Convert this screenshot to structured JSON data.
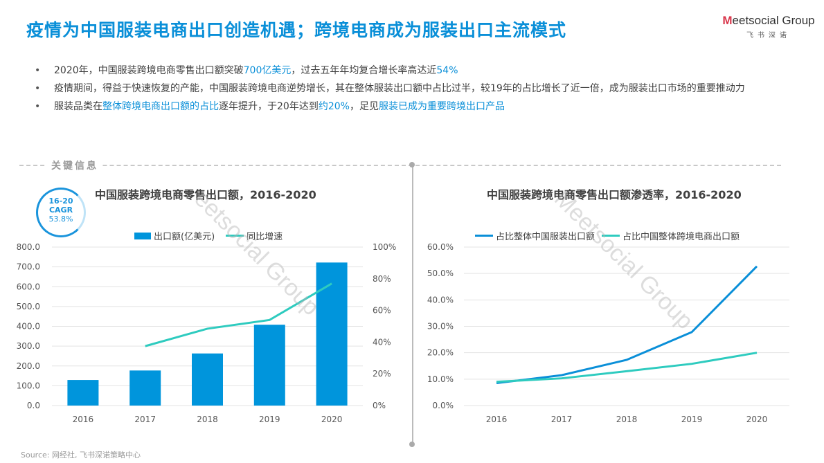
{
  "header": {
    "title": "疫情为中国服装电商出口创造机遇；跨境电商成为服装出口主流模式",
    "logo_brand": "Meetsocial Group",
    "logo_sub": "飞书深诺"
  },
  "bullets": [
    [
      {
        "t": "2020年，中国服装跨境电商零售出口额突破"
      },
      {
        "t": "700亿美元",
        "hl": true
      },
      {
        "t": "，过去五年年均复合增长率高达近"
      },
      {
        "t": "54%",
        "hl": true
      }
    ],
    [
      {
        "t": "疫情期间，得益于快速恢复的产能，中国服装跨境电商逆势增长，其在整体服装出口额中占比过半，较19年的占比增长了近一倍，成为服装出口市场的重要推动力"
      }
    ],
    [
      {
        "t": "服装品类在"
      },
      {
        "t": "整体跨境电商出口额的占比",
        "hl": true
      },
      {
        "t": "逐年提升，于20年达到"
      },
      {
        "t": "约20%",
        "hl": true
      },
      {
        "t": "，足见"
      },
      {
        "t": "服装已成为重要跨境出口产品",
        "hl": true
      }
    ]
  ],
  "key_info_label": "关键信息",
  "cagr": {
    "period": "16-20",
    "label": "CAGR",
    "value": "53.8%"
  },
  "source": "Source: 网经社, 飞书深诺策略中心",
  "colors": {
    "accent": "#0a8fd8",
    "bar": "#0095dc",
    "teal": "#2ecbbf",
    "blue_line": "#0a8fd8"
  },
  "chart_data": [
    {
      "type": "bar",
      "title": "中国服装跨境电商零售出口额，2016-2020",
      "categories": [
        "2016",
        "2017",
        "2018",
        "2019",
        "2020"
      ],
      "series": [
        {
          "name": "出口额(亿美元)",
          "type": "bar",
          "axis": "left",
          "values": [
            129,
            177,
            263,
            408,
            722
          ]
        },
        {
          "name": "同比增速",
          "type": "line",
          "axis": "right",
          "values": [
            null,
            37.5,
            48.5,
            54,
            77
          ]
        }
      ],
      "ylim": [
        0,
        800
      ],
      "yticks": [
        "0.0",
        "100.0",
        "200.0",
        "300.0",
        "400.0",
        "500.0",
        "600.0",
        "700.0",
        "800.0"
      ],
      "y2lim": [
        0,
        100
      ],
      "y2ticks": [
        "0%",
        "20%",
        "40%",
        "60%",
        "80%",
        "100%"
      ],
      "grid": true,
      "legend": "top"
    },
    {
      "type": "line",
      "title": "中国服装跨境电商零售出口额渗透率，2016-2020",
      "categories": [
        "2016",
        "2017",
        "2018",
        "2019",
        "2020"
      ],
      "series": [
        {
          "name": "占比整体中国服装出口额",
          "values": [
            8.5,
            11.5,
            17.3,
            27.8,
            52.7
          ]
        },
        {
          "name": "占比中国整体跨境电商出口额",
          "values": [
            9.0,
            10.3,
            13.0,
            15.8,
            20.0
          ]
        }
      ],
      "ylim": [
        0,
        60
      ],
      "yticks": [
        "0.0%",
        "10.0%",
        "20.0%",
        "30.0%",
        "40.0%",
        "50.0%",
        "60.0%"
      ],
      "grid": true,
      "legend": "top"
    }
  ]
}
